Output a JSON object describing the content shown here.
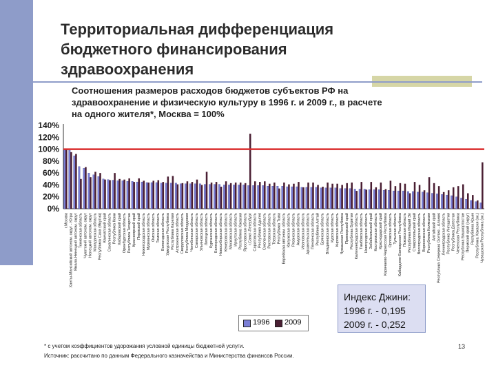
{
  "slide": {
    "title_line1": "Территориальная дифференциация",
    "title_line2": "бюджетного финансирования",
    "title_line3": "здравоохранения",
    "footnote": "* с учетом коэффициентов удорожания условной единицы бюджетной услуги.",
    "source": "Источник: рассчитано по данным Федерального казначейства и Министерства финансов России.",
    "page_number": "13"
  },
  "gini": {
    "title": "Индекс Джини:",
    "line_1996": "1996 г. - 0,195",
    "line_2009": "2009 г. - 0,252"
  },
  "colors": {
    "sidebar": "#8e9cc9",
    "series_1996": "#7b7fd6",
    "series_2009": "#4a1f33",
    "reference_line": "#d92b2b"
  },
  "chart_data": {
    "type": "bar",
    "title_line1": "Соотношения размеров расходов бюджетов субъектов РФ на",
    "title_line2": "здравоохранение и физическую культуру в 1996 г. и 2009 г., в расчете",
    "title_line3": "на одного жителя*, Москва = 100%",
    "y_ticks": [
      "140%",
      "120%",
      "100%",
      "80%",
      "60%",
      "40%",
      "20%",
      "0%"
    ],
    "ylim": [
      0,
      140
    ],
    "reference_value": 100,
    "legend_position": "bottom",
    "categories": [
      "г.Москва",
      "Ханты-Мансийский автоном. округ - Югра",
      "Ямало-Ненецкий автоном. округ",
      "Тюменская область",
      "Чукотский автоном. округ",
      "Ненецкий автоном. округ",
      "Магаданская область",
      "Республика Саха (Якутия)",
      "Камчатский край",
      "Сахалинская область",
      "Республика Коми",
      "Хабаровский край",
      "Оренбургская область",
      "Республика Татарстан",
      "Красноярский край",
      "Пермский край",
      "Нижегородская область",
      "Мурманская область",
      "Омская область",
      "Томская область",
      "Вологодская область",
      "Удмуртская Республика",
      "Республика Карелия",
      "Астраханская область",
      "Свердловская область",
      "Республика Мордовия",
      "Челябинская область",
      "Самарская область",
      "Ульяновская область",
      "Липецкая область",
      "Курганская область",
      "Белгородская область",
      "Новосибирская область",
      "Кемеровская область",
      "Московская область",
      "Иркутская область",
      "Республика Хакасия",
      "Ярославская область",
      "г.Санкт-Петербург",
      "Саратовская область",
      "Республика Адыгея",
      "Смоленская область",
      "Ростовская область",
      "Тверская область",
      "Республика Тыва",
      "Еврейская автоном. область",
      "Калужская область",
      "Рязанская область",
      "Амурская область",
      "Ивановская область",
      "Архангельская область",
      "Пензенская область",
      "Республика Алтай",
      "Брянская область",
      "Владимирская область",
      "Курская область",
      "Кировская область",
      "Чувашская Республика",
      "Приморский край",
      "Республика Бурятия",
      "Калининградская область",
      "Тамбовская область",
      "Новгородская область",
      "Забайкальский край",
      "Костромская область",
      "Краснодарский край",
      "Карачаево-Черкесская Республика",
      "Орловская область",
      "Тульская область",
      "Кабардино-Балкарская Республика",
      "Псковская область",
      "Республика Марий Эл",
      "Ставропольский край",
      "Волгоградская область",
      "Воронежская область",
      "Республика Калмыкия",
      "Алтайский край",
      "Республика Северная Осетия - Алания",
      "Ленинградская область",
      "Республика Ингушетия",
      "Республика Дагестан",
      "Чеченская Республика",
      "Республика Башкортостан",
      "Пермский край (округ)",
      "Республика Крым",
      "Республика Хакасия (ок.)",
      "Чувашская Республика (ок.)"
    ],
    "series": [
      {
        "name": "1996",
        "values": [
          100,
          98,
          89,
          71,
          68,
          60,
          57,
          54,
          50,
          49,
          48,
          47,
          47,
          46,
          46,
          45,
          45,
          44,
          44,
          44,
          43,
          43,
          43,
          43,
          42,
          42,
          42,
          42,
          42,
          41,
          41,
          41,
          41,
          40,
          40,
          40,
          40,
          40,
          39,
          39,
          39,
          39,
          38,
          38,
          38,
          38,
          37,
          37,
          37,
          36,
          36,
          36,
          36,
          35,
          35,
          35,
          35,
          34,
          34,
          34,
          33,
          33,
          33,
          32,
          32,
          32,
          31,
          31,
          30,
          30,
          30,
          29,
          29,
          28,
          28,
          27,
          26,
          25,
          24,
          23,
          22,
          20,
          18,
          16,
          14,
          12,
          10
        ]
      },
      {
        "name": "2009",
        "values": [
          100,
          95,
          92,
          50,
          70,
          53,
          62,
          60,
          49,
          48,
          60,
          50,
          49,
          51,
          45,
          51,
          47,
          44,
          47,
          48,
          45,
          54,
          55,
          41,
          43,
          46,
          45,
          49,
          40,
          62,
          44,
          45,
          37,
          46,
          43,
          44,
          44,
          43,
          126,
          46,
          45,
          46,
          42,
          44,
          34,
          44,
          41,
          42,
          45,
          36,
          44,
          44,
          40,
          37,
          44,
          42,
          42,
          40,
          43,
          44,
          30,
          45,
          32,
          45,
          36,
          44,
          33,
          47,
          38,
          43,
          42,
          26,
          45,
          40,
          31,
          53,
          43,
          38,
          28,
          31,
          36,
          38,
          41,
          26,
          23,
          14,
          78
        ]
      }
    ]
  }
}
